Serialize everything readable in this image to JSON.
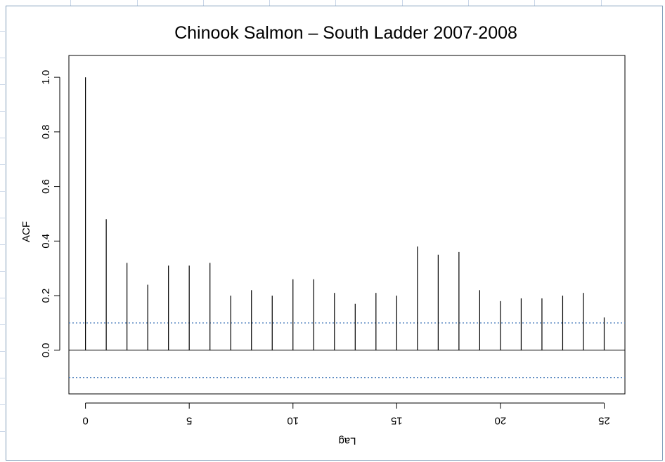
{
  "window": {
    "frame_color": "#7f9db9",
    "grid_color": "#c9d6e8"
  },
  "chart_data": {
    "type": "bar",
    "subtype": "acf-plot",
    "title": "Chinook Salmon – South Ladder 2007-2008",
    "xlabel": "Lag",
    "ylabel": "ACF",
    "x": [
      0,
      1,
      2,
      3,
      4,
      5,
      6,
      7,
      8,
      9,
      10,
      11,
      12,
      13,
      14,
      15,
      16,
      17,
      18,
      19,
      20,
      21,
      22,
      23,
      24,
      25
    ],
    "values": [
      1.0,
      0.48,
      0.32,
      0.24,
      0.31,
      0.31,
      0.32,
      0.2,
      0.22,
      0.2,
      0.26,
      0.26,
      0.21,
      0.17,
      0.21,
      0.2,
      0.38,
      0.35,
      0.36,
      0.22,
      0.18,
      0.19,
      0.19,
      0.2,
      0.21,
      0.12
    ],
    "xlim": [
      -0.8,
      26
    ],
    "ylim": [
      -0.16,
      1.08
    ],
    "x_ticks": [
      0,
      5,
      10,
      15,
      20,
      25
    ],
    "x_tick_labels": [
      "0",
      "5",
      "10",
      "15",
      "20",
      "25"
    ],
    "y_ticks": [
      0.0,
      0.2,
      0.4,
      0.6,
      0.8,
      1.0
    ],
    "y_tick_labels": [
      "0.0",
      "0.2",
      "0.4",
      "0.6",
      "0.8",
      "1.0"
    ],
    "confidence_bound": 0.1,
    "confidence_color": "#4f81bd",
    "grid": false,
    "legend": "none",
    "x_tick_labels_flipped": true
  }
}
